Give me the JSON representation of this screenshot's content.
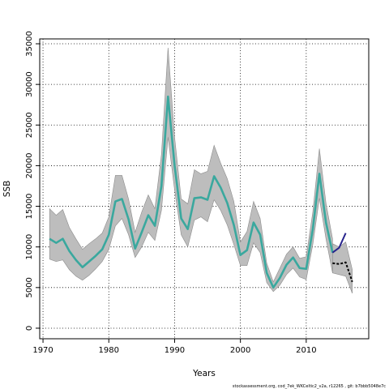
{
  "chart_data": {
    "type": "line",
    "title": "",
    "xlabel": "Years",
    "ylabel": "SSB",
    "xlim": [
      1969.5,
      2019.5
    ],
    "ylim": [
      -1300,
      35600
    ],
    "x_ticks": [
      1970,
      1980,
      1990,
      2000,
      2010
    ],
    "x_tick_labels": [
      "1970",
      "1980",
      "1990",
      "2000",
      "2010"
    ],
    "y_ticks": [
      0,
      5000,
      10000,
      15000,
      20000,
      25000,
      30000,
      35000
    ],
    "y_tick_labels": [
      "0",
      "5000",
      "10000",
      "15000",
      "20000",
      "25000",
      "30000",
      "35000"
    ],
    "grid": true,
    "footnote": "stockassessment.org,  cod_7ek_WKCeltic2_v2a,  r12265 ,  git: b7bbb5048e7c",
    "colors": {
      "band": "#bdbdbd",
      "band_edge": "#8c8c8c",
      "main_line": "#3aa89e",
      "forecast_blue": "#27238c",
      "forecast_black": "#000000",
      "grid": "#000000"
    },
    "series": [
      {
        "role": "estimate",
        "x": [
          1971,
          1972,
          1973,
          1974,
          1975,
          1976,
          1977,
          1978,
          1979,
          1980,
          1981,
          1982,
          1983,
          1984,
          1985,
          1986,
          1987,
          1988,
          1989,
          1990,
          1991,
          1992,
          1993,
          1994,
          1995,
          1996,
          1997,
          1998,
          1999,
          2000,
          2001,
          2002,
          2003,
          2004,
          2005,
          2006,
          2007,
          2008,
          2009,
          2010,
          2011,
          2012,
          2013,
          2014
        ],
        "values": [
          11000,
          10500,
          11000,
          9500,
          8400,
          7500,
          8200,
          8900,
          9700,
          11500,
          15600,
          15900,
          13400,
          9800,
          11800,
          13900,
          12600,
          17500,
          28500,
          20000,
          13500,
          12200,
          16000,
          16100,
          15800,
          18700,
          17300,
          15400,
          12700,
          9000,
          9600,
          13000,
          11500,
          6800,
          5000,
          6200,
          7800,
          8700,
          7400,
          7300,
          12200,
          19000,
          13000,
          9300
        ],
        "lower": [
          8500,
          8200,
          8400,
          7200,
          6400,
          5900,
          6500,
          7300,
          8200,
          9700,
          12600,
          13500,
          11500,
          8700,
          10000,
          11800,
          10800,
          14500,
          23500,
          17000,
          11500,
          10000,
          13300,
          13700,
          13100,
          15800,
          14500,
          12700,
          10300,
          7700,
          7700,
          10500,
          9300,
          5600,
          4500,
          5300,
          6600,
          7400,
          6300,
          6000,
          10300,
          16000,
          11000,
          6800
        ],
        "upper": [
          14700,
          13900,
          14600,
          12400,
          11000,
          9700,
          10400,
          11000,
          11700,
          13700,
          18800,
          18800,
          15900,
          11800,
          14300,
          16400,
          14700,
          21400,
          34500,
          23500,
          15900,
          15300,
          19500,
          19000,
          19300,
          22500,
          20300,
          18400,
          15600,
          10600,
          11900,
          15600,
          13500,
          8000,
          5700,
          7400,
          9100,
          10000,
          8600,
          8800,
          14300,
          22100,
          15400,
          11000
        ]
      },
      {
        "role": "forecast_blue",
        "x": [
          2014,
          2015,
          2016
        ],
        "values": [
          9300,
          9900,
          11700
        ]
      },
      {
        "role": "forecast_black",
        "x": [
          2014,
          2015,
          2016,
          2017
        ],
        "values": [
          8000,
          7900,
          8100,
          5700
        ],
        "lower": [
          6800,
          6600,
          6400,
          4300
        ],
        "upper": [
          10400,
          10000,
          10600,
          7200
        ]
      }
    ]
  }
}
